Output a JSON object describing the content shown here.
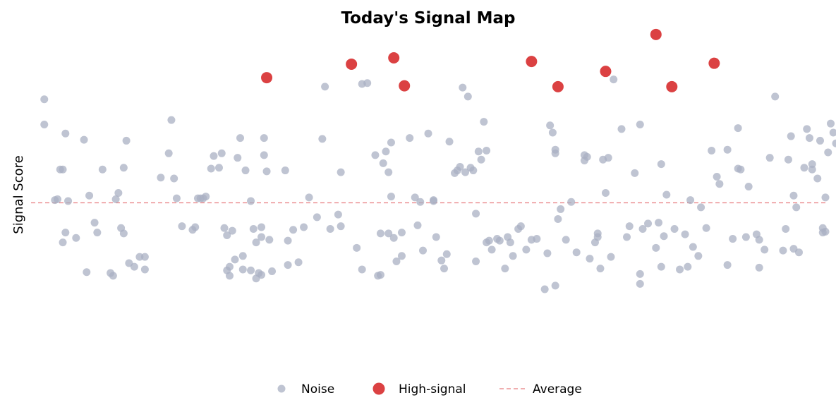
{
  "chart_data": {
    "type": "scatter",
    "title": "Today's Signal Map",
    "xlabel": "",
    "ylabel": "Signal Score",
    "grid": false,
    "xlim": [
      -0.5,
      29.5
    ],
    "ylim": [
      -1.9,
      1.9
    ],
    "colors": {
      "noise": "#a9b0c3",
      "high": "#d62728",
      "average": "#e87d7f",
      "title": "#000000"
    },
    "legend": {
      "placement": "bottom-center",
      "items": [
        {
          "key": "noise",
          "label": "Noise"
        },
        {
          "key": "high",
          "label": "High-signal"
        },
        {
          "key": "average",
          "label": "Average"
        }
      ]
    },
    "average": 0.0,
    "series": [
      {
        "name": "Noise",
        "key": "noise",
        "points": [
          [
            0.0,
            1.15
          ],
          [
            0.0,
            0.87
          ],
          [
            0.4,
            0.03
          ],
          [
            0.5,
            0.04
          ],
          [
            0.6,
            0.37
          ],
          [
            0.7,
            0.37
          ],
          [
            0.8,
            0.77
          ],
          [
            0.8,
            -0.33
          ],
          [
            0.7,
            -0.44
          ],
          [
            0.9,
            0.02
          ],
          [
            1.2,
            -0.39
          ],
          [
            1.5,
            0.7
          ],
          [
            1.6,
            -0.77
          ],
          [
            1.7,
            0.08
          ],
          [
            1.9,
            -0.22
          ],
          [
            2.0,
            -0.33
          ],
          [
            2.2,
            0.37
          ],
          [
            2.5,
            -0.78
          ],
          [
            2.6,
            -0.81
          ],
          [
            2.7,
            0.04
          ],
          [
            2.8,
            0.11
          ],
          [
            2.9,
            -0.28
          ],
          [
            3.0,
            -0.34
          ],
          [
            3.0,
            0.39
          ],
          [
            3.1,
            0.69
          ],
          [
            3.2,
            -0.67
          ],
          [
            3.4,
            -0.71
          ],
          [
            3.6,
            -0.6
          ],
          [
            3.8,
            -0.74
          ],
          [
            3.8,
            -0.6
          ],
          [
            4.4,
            0.28
          ],
          [
            4.7,
            0.55
          ],
          [
            4.8,
            0.92
          ],
          [
            4.9,
            0.27
          ],
          [
            5.0,
            0.05
          ],
          [
            5.2,
            -0.26
          ],
          [
            5.6,
            -0.3
          ],
          [
            5.7,
            -0.27
          ],
          [
            5.8,
            0.05
          ],
          [
            5.9,
            0.05
          ],
          [
            6.0,
            0.05
          ],
          [
            6.1,
            0.07
          ],
          [
            6.3,
            0.38
          ],
          [
            6.4,
            0.52
          ],
          [
            6.6,
            0.39
          ],
          [
            6.7,
            0.55
          ],
          [
            6.8,
            -0.28
          ],
          [
            6.9,
            -0.36
          ],
          [
            6.9,
            -0.75
          ],
          [
            7.0,
            -0.71
          ],
          [
            7.0,
            -0.81
          ],
          [
            7.1,
            -0.31
          ],
          [
            7.2,
            -0.63
          ],
          [
            7.3,
            0.5
          ],
          [
            7.4,
            0.72
          ],
          [
            7.5,
            -0.74
          ],
          [
            7.5,
            -0.59
          ],
          [
            7.6,
            0.36
          ],
          [
            7.8,
            -0.75
          ],
          [
            7.8,
            0.02
          ],
          [
            7.9,
            -0.29
          ],
          [
            8.0,
            -0.44
          ],
          [
            8.0,
            -0.84
          ],
          [
            8.1,
            -0.78
          ],
          [
            8.2,
            -0.27
          ],
          [
            8.2,
            -0.38
          ],
          [
            8.2,
            -0.8
          ],
          [
            8.3,
            0.53
          ],
          [
            8.3,
            0.72
          ],
          [
            8.4,
            0.35
          ],
          [
            8.5,
            -0.41
          ],
          [
            8.6,
            -0.76
          ],
          [
            9.1,
            0.36
          ],
          [
            9.2,
            -0.69
          ],
          [
            9.2,
            -0.42
          ],
          [
            9.4,
            -0.3
          ],
          [
            9.6,
            -0.66
          ],
          [
            9.8,
            -0.27
          ],
          [
            10.0,
            0.06
          ],
          [
            10.3,
            -0.16
          ],
          [
            10.5,
            0.71
          ],
          [
            10.6,
            1.29
          ],
          [
            10.8,
            -0.29
          ],
          [
            11.1,
            -0.13
          ],
          [
            11.2,
            0.34
          ],
          [
            11.2,
            -0.26
          ],
          [
            12.0,
            1.32
          ],
          [
            12.2,
            1.33
          ],
          [
            11.8,
            -0.5
          ],
          [
            12.0,
            -0.74
          ],
          [
            12.5,
            0.53
          ],
          [
            12.6,
            -0.81
          ],
          [
            12.7,
            -0.8
          ],
          [
            12.7,
            -0.34
          ],
          [
            12.8,
            0.44
          ],
          [
            12.9,
            0.57
          ],
          [
            13.0,
            0.34
          ],
          [
            13.1,
            0.67
          ],
          [
            13.0,
            -0.34
          ],
          [
            13.1,
            0.07
          ],
          [
            13.2,
            -0.39
          ],
          [
            13.3,
            -0.65
          ],
          [
            13.5,
            -0.33
          ],
          [
            13.8,
            0.72
          ],
          [
            13.5,
            -0.59
          ],
          [
            14.0,
            0.06
          ],
          [
            14.1,
            -0.25
          ],
          [
            14.2,
            0.01
          ],
          [
            14.3,
            -0.53
          ],
          [
            14.5,
            0.77
          ],
          [
            14.7,
            0.03
          ],
          [
            14.7,
            0.02
          ],
          [
            14.8,
            -0.38
          ],
          [
            15.0,
            -0.64
          ],
          [
            15.1,
            -0.73
          ],
          [
            15.2,
            -0.57
          ],
          [
            15.3,
            0.68
          ],
          [
            15.5,
            0.33
          ],
          [
            15.6,
            0.36
          ],
          [
            15.7,
            0.4
          ],
          [
            15.8,
            1.28
          ],
          [
            15.9,
            0.34
          ],
          [
            16.0,
            1.18
          ],
          [
            16.1,
            0.39
          ],
          [
            16.2,
            0.36
          ],
          [
            16.3,
            -0.12
          ],
          [
            16.3,
            -0.65
          ],
          [
            16.4,
            0.57
          ],
          [
            16.5,
            0.48
          ],
          [
            16.6,
            0.9
          ],
          [
            16.7,
            -0.44
          ],
          [
            16.7,
            0.58
          ],
          [
            16.8,
            -0.42
          ],
          [
            16.9,
            -0.52
          ],
          [
            17.1,
            -0.4
          ],
          [
            17.2,
            -0.42
          ],
          [
            17.4,
            -0.73
          ],
          [
            17.5,
            -0.38
          ],
          [
            17.6,
            -0.44
          ],
          [
            17.7,
            -0.59
          ],
          [
            17.9,
            -0.29
          ],
          [
            18.0,
            -0.26
          ],
          [
            18.2,
            -0.52
          ],
          [
            18.4,
            -0.41
          ],
          [
            18.6,
            -0.4
          ],
          [
            18.9,
            -0.96
          ],
          [
            19.0,
            -0.56
          ],
          [
            19.2,
            0.78
          ],
          [
            19.1,
            0.86
          ],
          [
            19.3,
            0.55
          ],
          [
            19.3,
            -0.92
          ],
          [
            19.3,
            0.59
          ],
          [
            19.4,
            -0.18
          ],
          [
            19.5,
            -0.07
          ],
          [
            19.7,
            -0.41
          ],
          [
            19.9,
            0.01
          ],
          [
            20.1,
            -0.55
          ],
          [
            20.4,
            0.53
          ],
          [
            20.5,
            0.51
          ],
          [
            20.4,
            0.47
          ],
          [
            20.6,
            -0.62
          ],
          [
            20.8,
            -0.44
          ],
          [
            20.9,
            -0.34
          ],
          [
            20.9,
            -0.38
          ],
          [
            21.0,
            -0.73
          ],
          [
            21.1,
            0.48
          ],
          [
            21.2,
            0.11
          ],
          [
            21.3,
            0.5
          ],
          [
            21.4,
            -0.6
          ],
          [
            21.5,
            1.37
          ],
          [
            21.8,
            0.82
          ],
          [
            22.0,
            -0.38
          ],
          [
            22.1,
            -0.26
          ],
          [
            22.3,
            0.33
          ],
          [
            22.5,
            0.87
          ],
          [
            22.5,
            -0.9
          ],
          [
            22.5,
            -0.79
          ],
          [
            22.6,
            -0.29
          ],
          [
            22.8,
            -0.23
          ],
          [
            23.1,
            -0.5
          ],
          [
            23.2,
            -0.22
          ],
          [
            23.3,
            0.43
          ],
          [
            23.3,
            -0.71
          ],
          [
            23.4,
            -0.37
          ],
          [
            23.5,
            0.09
          ],
          [
            23.8,
            -0.29
          ],
          [
            24.0,
            -0.74
          ],
          [
            24.2,
            -0.35
          ],
          [
            24.3,
            -0.71
          ],
          [
            24.4,
            0.03
          ],
          [
            24.5,
            -0.49
          ],
          [
            24.7,
            -0.59
          ],
          [
            24.8,
            -0.05
          ],
          [
            25.0,
            -0.28
          ],
          [
            25.2,
            0.58
          ],
          [
            25.4,
            0.29
          ],
          [
            25.5,
            0.21
          ],
          [
            25.8,
            0.59
          ],
          [
            25.8,
            -0.69
          ],
          [
            26.0,
            -0.4
          ],
          [
            26.2,
            0.83
          ],
          [
            26.2,
            0.38
          ],
          [
            26.3,
            0.37
          ],
          [
            26.5,
            -0.38
          ],
          [
            26.6,
            0.18
          ],
          [
            26.9,
            -0.35
          ],
          [
            27.0,
            -0.72
          ],
          [
            27.0,
            -0.41
          ],
          [
            27.2,
            -0.52
          ],
          [
            27.4,
            0.5
          ],
          [
            27.6,
            1.18
          ],
          [
            27.9,
            -0.53
          ],
          [
            28.0,
            -0.29
          ],
          [
            28.1,
            0.48
          ],
          [
            28.2,
            0.74
          ],
          [
            28.3,
            0.08
          ],
          [
            28.3,
            -0.51
          ],
          [
            28.4,
            -0.05
          ],
          [
            28.5,
            -0.55
          ],
          [
            28.7,
            0.39
          ],
          [
            28.8,
            0.82
          ],
          [
            28.9,
            0.72
          ],
          [
            29.0,
            0.43
          ],
          [
            29.0,
            0.37
          ],
          [
            29.2,
            0.27
          ],
          [
            29.3,
            0.69
          ],
          [
            29.4,
            -0.28
          ],
          [
            29.4,
            -0.33
          ],
          [
            29.5,
            0.06
          ],
          [
            29.5,
            -0.32
          ],
          [
            29.6,
            0.56
          ],
          [
            29.7,
            0.88
          ],
          [
            29.8,
            0.78
          ],
          [
            29.9,
            0.66
          ],
          [
            30.1,
            -0.06
          ],
          [
            30.1,
            0.03
          ],
          [
            30.3,
            -0.18
          ],
          [
            30.5,
            0.92
          ],
          [
            30.6,
            0.49
          ],
          [
            30.6,
            -0.6
          ]
        ]
      },
      {
        "name": "High-signal",
        "key": "high",
        "points": [
          [
            8.4,
            1.39
          ],
          [
            11.6,
            1.54
          ],
          [
            13.2,
            1.61
          ],
          [
            13.6,
            1.3
          ],
          [
            18.4,
            1.57
          ],
          [
            19.4,
            1.29
          ],
          [
            21.2,
            1.46
          ],
          [
            23.1,
            1.87
          ],
          [
            23.7,
            1.29
          ],
          [
            25.3,
            1.55
          ]
        ]
      }
    ]
  }
}
